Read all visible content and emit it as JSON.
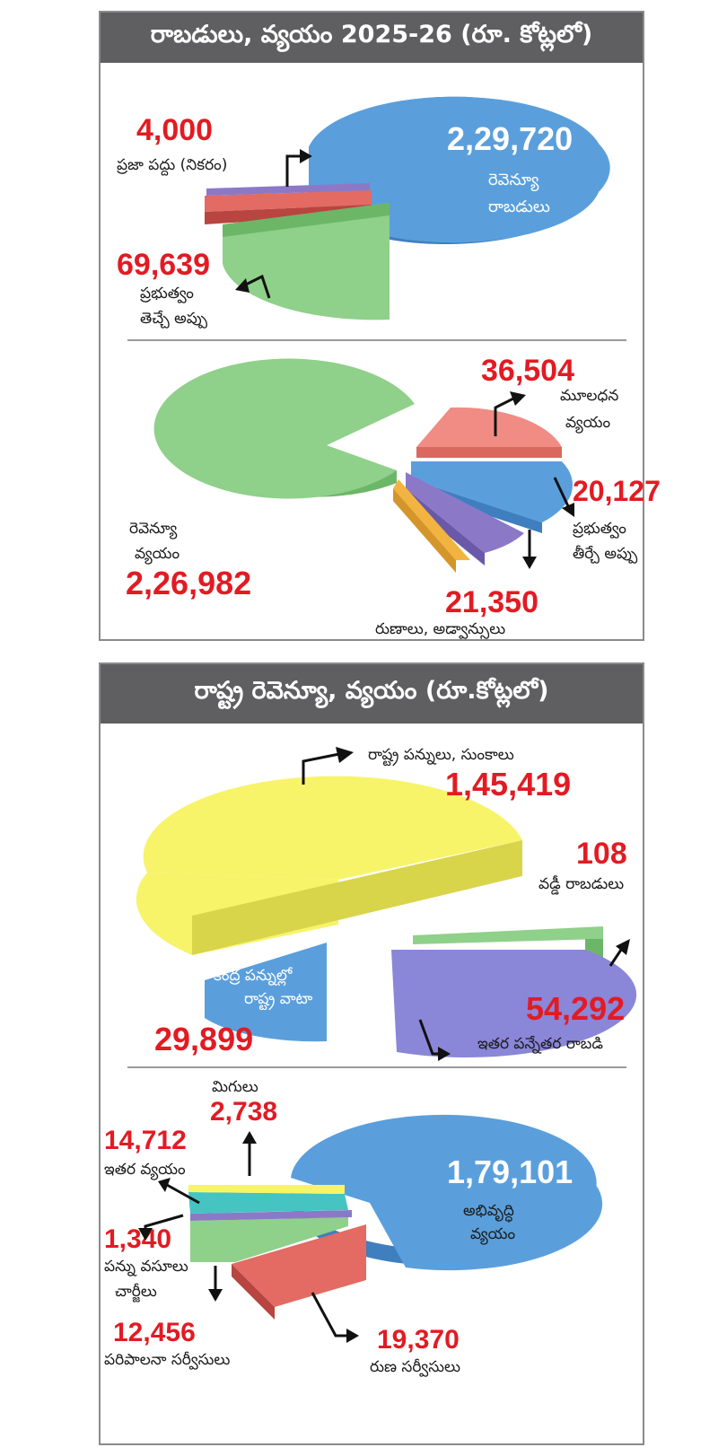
{
  "panel1": {
    "title": "రాబడులు, వ్యయం 2025-26  (రూ. కోట్లలో)",
    "receipts": {
      "revenue_value": "2,29,720",
      "revenue_label_1": "రెవెన్యూ",
      "revenue_label_2": "రాబడులు",
      "public_debt_value": "4,000",
      "public_debt_label": "ప్రజా పద్దు (నికరం)",
      "borrowing_value": "69,639",
      "borrowing_label_1": "ప్రభుత్వం",
      "borrowing_label_2": "తెచ్చే అప్పు"
    },
    "expenditure": {
      "revenue_exp_label_1": "రెవెన్యూ",
      "revenue_exp_label_2": "వ్యయం",
      "revenue_exp_value": "2,26,982",
      "capital_value": "36,504",
      "capital_label_1": "మూలధన",
      "capital_label_2": "వ్యయం",
      "repay_value": "20,127",
      "repay_label_1": "ప్రభుత్వం",
      "repay_label_2": "తీర్చే అప్పు",
      "loans_value": "21,350",
      "loans_label": "రుణాలు, అడ్వాన్సులు"
    }
  },
  "panel2": {
    "title": "రాష్ట్ర రెవెన్యూ, వ్యయం (రూ.కోట్లలో)",
    "revenue": {
      "state_tax_label": "రాష్ట్ర పన్నులు, సుంకాలు",
      "state_tax_value": "1,45,419",
      "interest_value": "108",
      "interest_label": "వడ్డీ రాబడులు",
      "central_share_label_1": "కేంద్ర పన్నుల్లో",
      "central_share_label_2": "రాష్ట్ర వాటా",
      "central_share_value": "29,899",
      "non_tax_value": "54,292",
      "non_tax_label": "ఇతర పన్నేతర రాబడి"
    },
    "expenditure": {
      "dev_value": "1,79,101",
      "dev_label_1": "అభివృద్ధి",
      "dev_label_2": "వ్యయం",
      "surplus_label": "మిగులు",
      "surplus_value": "2,738",
      "other_value": "14,712",
      "other_label": "ఇతర వ్యయం",
      "taxcol_value": "1,340",
      "taxcol_label_1": "పన్ను వసూలు",
      "taxcol_label_2": "చార్జీలు",
      "admin_value": "12,456",
      "admin_label": "పరిపాలనా సర్వీసులు",
      "debt_value": "19,370",
      "debt_label": "రుణ సర్వీసులు"
    }
  },
  "colors": {
    "blue": "#5a9fdc",
    "green": "#8fd08a",
    "red": "#e36b63",
    "purple": "#8b79c8",
    "salmon": "#f08c84",
    "orange": "#f2b441",
    "yellow": "#f7f46a",
    "violet": "#8a86d8",
    "teal": "#45c4c2",
    "number_red": "#e21b23",
    "header_gray": "#5f5f61"
  },
  "chart_data": [
    {
      "type": "pie",
      "title": "రాబడులు, వ్యయం 2025-26  (రూ. కోట్లలో)",
      "categories": [
        "రెవెన్యూ రాబడులు",
        "ప్రజా పద్దు (నికరం)",
        "ప్రభుత్వం తెచ్చే అప్పు"
      ],
      "values": [
        229720,
        4000,
        69639
      ]
    },
    {
      "type": "pie",
      "categories": [
        "రెవెన్యూ వ్యయం",
        "మూలధన వ్యయం",
        "ప్రభుత్వం తీర్చే అప్పు",
        "రుణాలు, అడ్వాన్సులు"
      ],
      "values": [
        226982,
        36504,
        20127,
        21350
      ]
    },
    {
      "type": "pie",
      "title": "రాష్ట్ర రెవెన్యూ, వ్యయం (రూ.కోట్లలో)",
      "categories": [
        "రాష్ట్ర పన్నులు, సుంకాలు",
        "వడ్డీ రాబడులు",
        "ఇతర పన్నేతర రాబడి",
        "కేంద్ర పన్నుల్లో రాష్ట్ర వాటా"
      ],
      "values": [
        145419,
        108,
        54292,
        29899
      ]
    },
    {
      "type": "pie",
      "categories": [
        "అభివృద్ధి వ్యయం",
        "రుణ సర్వీసులు",
        "పరిపాలనా సర్వీసులు",
        "పన్ను వసూలు చార్జీలు",
        "ఇతర వ్యయం",
        "మిగులు"
      ],
      "values": [
        179101,
        19370,
        12456,
        1340,
        14712,
        2738
      ]
    }
  ]
}
